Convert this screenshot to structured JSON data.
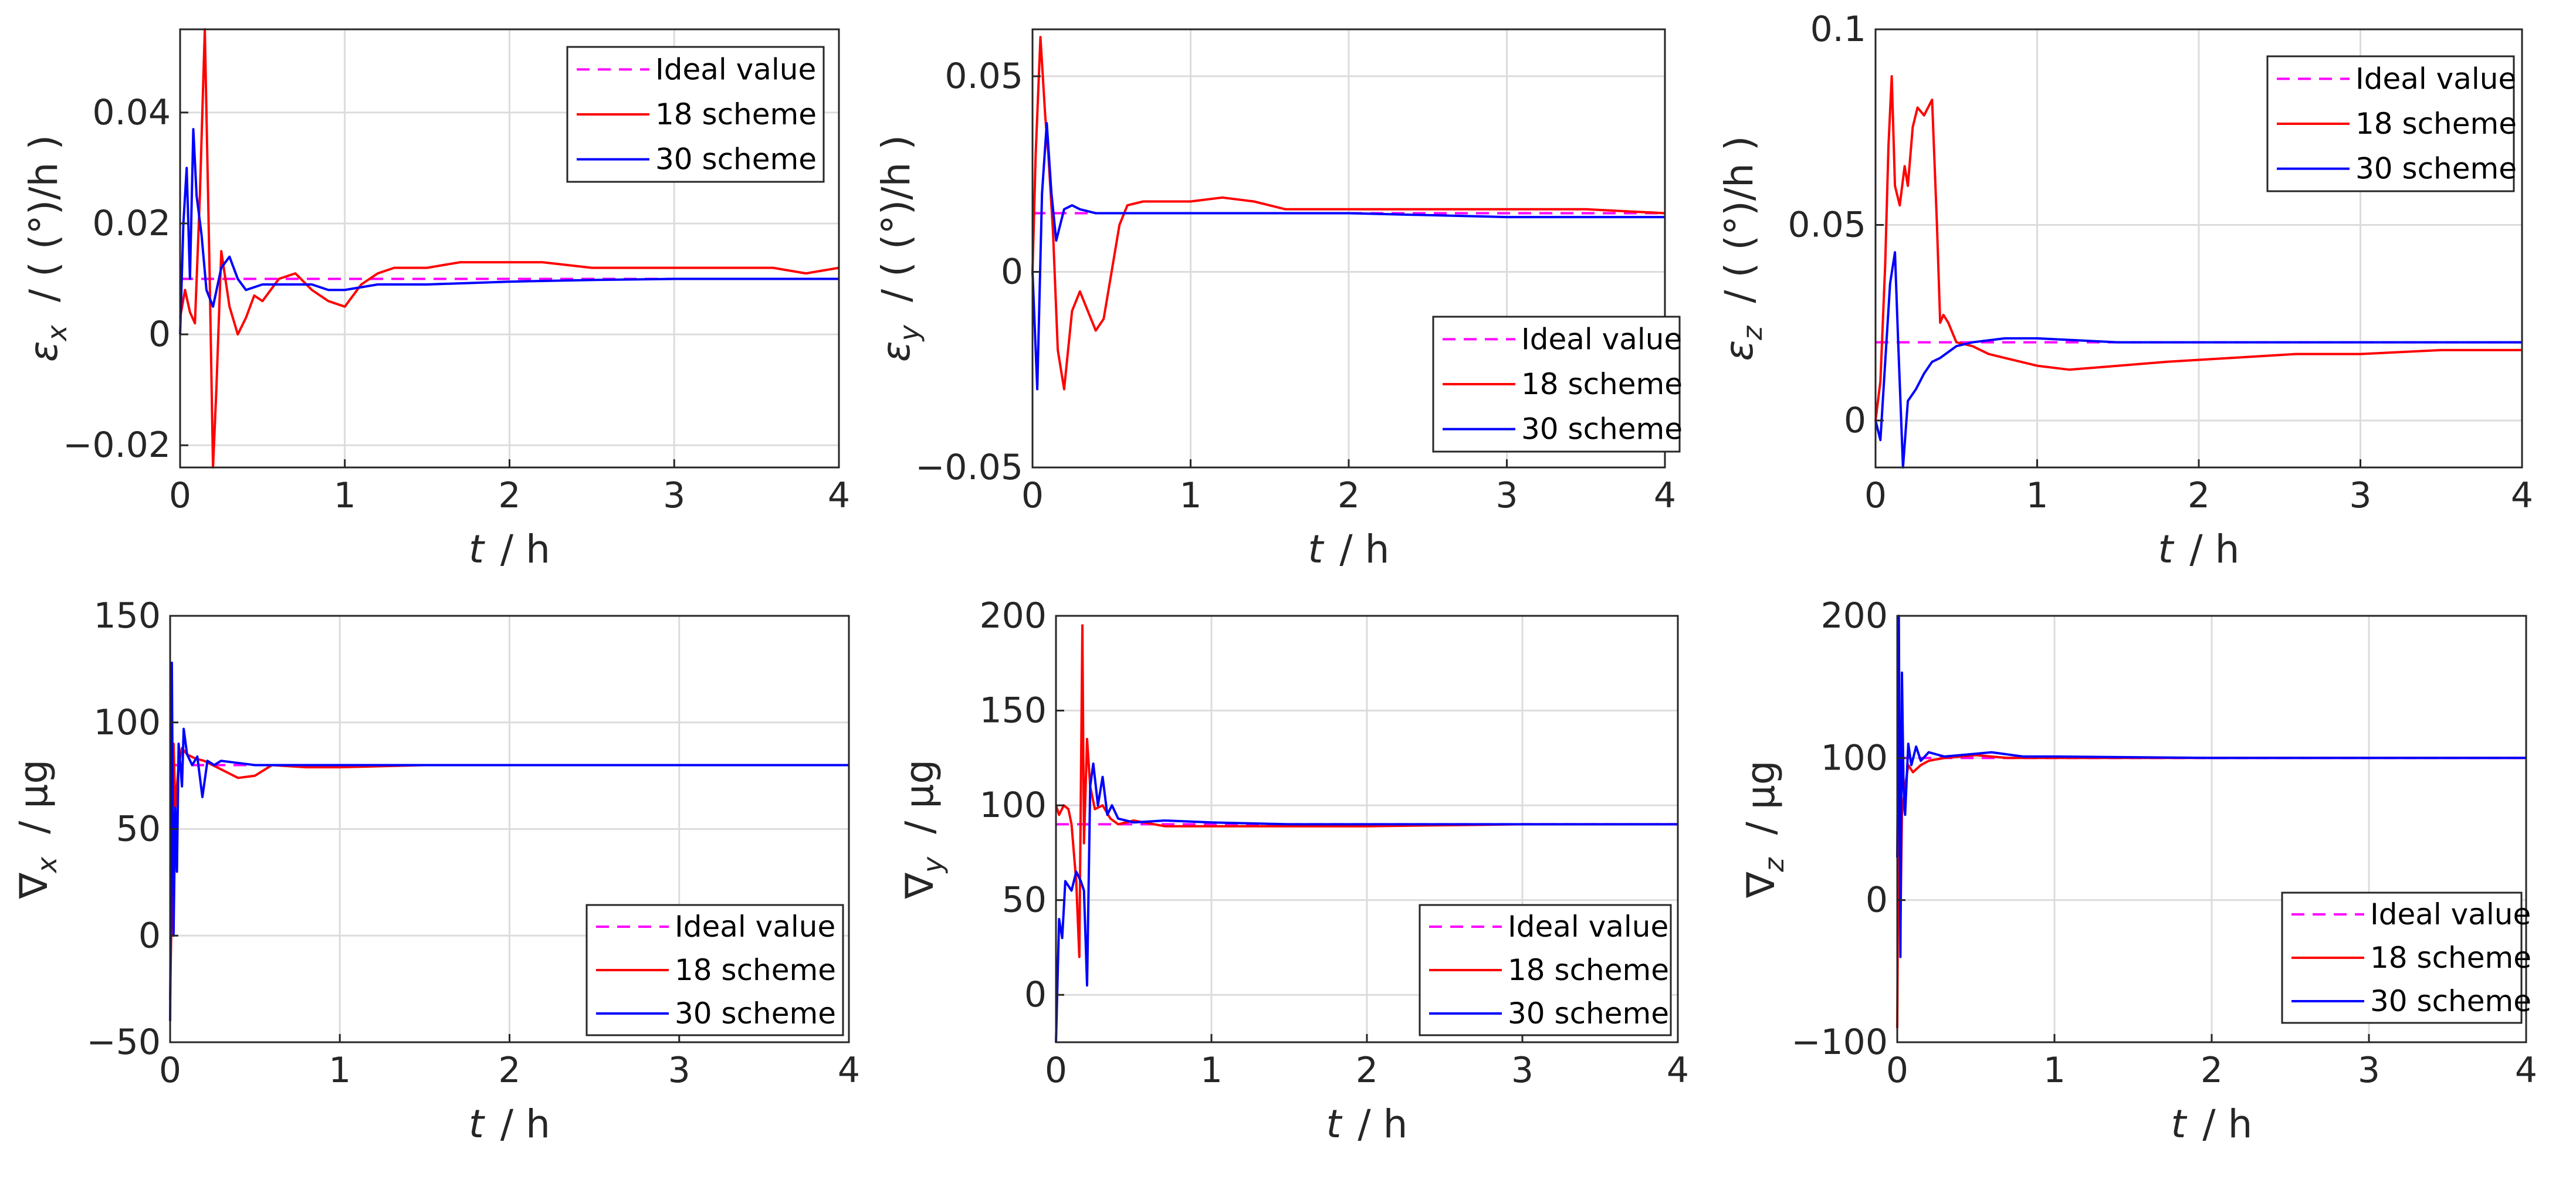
{
  "figure": {
    "legend_labels": [
      "Ideal value",
      "18 scheme",
      "30 scheme"
    ],
    "colors": {
      "ideal": "#ff00ff",
      "scheme18": "#ff0000",
      "scheme30": "#0000ff",
      "axes": "#262626",
      "grid": "#dcdcdc"
    }
  },
  "chart_data": [
    {
      "type": "line",
      "ylabel_symbol": "ε",
      "ylabel_sub": "x",
      "ylabel_unit": "/ ( (°)/h )",
      "xlabel_symbol": "t",
      "xlabel_unit": "/ h",
      "xlim": [
        0,
        4
      ],
      "ylim": [
        -0.024,
        0.055
      ],
      "xticks": [
        0,
        1,
        2,
        3,
        4
      ],
      "xtick_labels": [
        "0",
        "1",
        "2",
        "3",
        "4"
      ],
      "yticks": [
        -0.02,
        0,
        0.02,
        0.04
      ],
      "ytick_labels": [
        "−0.02",
        "0",
        "0.02",
        "0.04"
      ],
      "grid": true,
      "legend_position": "top-right",
      "ideal": 0.01,
      "series": [
        {
          "name": "18 scheme",
          "x": [
            0,
            0.03,
            0.06,
            0.09,
            0.12,
            0.15,
            0.18,
            0.2,
            0.22,
            0.25,
            0.3,
            0.35,
            0.4,
            0.45,
            0.5,
            0.6,
            0.7,
            0.8,
            0.9,
            1.0,
            1.1,
            1.2,
            1.3,
            1.5,
            1.7,
            2.0,
            2.2,
            2.5,
            2.8,
            3.0,
            3.3,
            3.6,
            3.8,
            4.0
          ],
          "values": [
            0.003,
            0.008,
            0.004,
            0.002,
            0.025,
            0.055,
            0.01,
            -0.024,
            -0.01,
            0.015,
            0.005,
            0.0,
            0.003,
            0.007,
            0.006,
            0.01,
            0.011,
            0.008,
            0.006,
            0.005,
            0.009,
            0.011,
            0.012,
            0.012,
            0.013,
            0.013,
            0.013,
            0.012,
            0.012,
            0.012,
            0.012,
            0.012,
            0.011,
            0.012
          ]
        },
        {
          "name": "30 scheme",
          "x": [
            0,
            0.02,
            0.04,
            0.06,
            0.08,
            0.1,
            0.13,
            0.16,
            0.2,
            0.25,
            0.3,
            0.35,
            0.4,
            0.5,
            0.6,
            0.7,
            0.8,
            0.9,
            1.0,
            1.2,
            1.5,
            2.0,
            2.5,
            3.0,
            3.5,
            4.0
          ],
          "values": [
            0.0,
            0.02,
            0.03,
            0.01,
            0.037,
            0.025,
            0.018,
            0.008,
            0.005,
            0.012,
            0.014,
            0.01,
            0.008,
            0.009,
            0.009,
            0.009,
            0.009,
            0.008,
            0.008,
            0.009,
            0.009,
            0.0095,
            0.0098,
            0.01,
            0.01,
            0.01
          ]
        }
      ]
    },
    {
      "type": "line",
      "ylabel_symbol": "ε",
      "ylabel_sub": "y",
      "ylabel_unit": "/ ( (°)/h )",
      "xlabel_symbol": "t",
      "xlabel_unit": "/ h",
      "xlim": [
        0,
        4
      ],
      "ylim": [
        -0.05,
        0.062
      ],
      "xticks": [
        0,
        1,
        2,
        3,
        4
      ],
      "xtick_labels": [
        "0",
        "1",
        "2",
        "3",
        "4"
      ],
      "yticks": [
        -0.05,
        0,
        0.05
      ],
      "ytick_labels": [
        "−0.05",
        "0",
        "0.05"
      ],
      "grid": true,
      "legend_position": "bottom-right",
      "ideal": 0.015,
      "series": [
        {
          "name": "18 scheme",
          "x": [
            0,
            0.02,
            0.05,
            0.08,
            0.1,
            0.13,
            0.16,
            0.2,
            0.25,
            0.3,
            0.35,
            0.4,
            0.45,
            0.5,
            0.55,
            0.6,
            0.7,
            0.8,
            1.0,
            1.2,
            1.4,
            1.6,
            1.8,
            2.0,
            2.5,
            3.0,
            3.5,
            4.0
          ],
          "values": [
            0.0,
            0.03,
            0.06,
            0.04,
            0.03,
            0.01,
            -0.02,
            -0.03,
            -0.01,
            -0.005,
            -0.01,
            -0.015,
            -0.012,
            0.0,
            0.012,
            0.017,
            0.018,
            0.018,
            0.018,
            0.019,
            0.018,
            0.016,
            0.016,
            0.016,
            0.016,
            0.016,
            0.016,
            0.015
          ]
        },
        {
          "name": "30 scheme",
          "x": [
            0,
            0.03,
            0.06,
            0.09,
            0.12,
            0.15,
            0.2,
            0.25,
            0.3,
            0.4,
            0.5,
            0.6,
            0.8,
            1.0,
            1.5,
            2.0,
            3.0,
            4.0
          ],
          "values": [
            0.0,
            -0.03,
            0.02,
            0.038,
            0.02,
            0.008,
            0.016,
            0.017,
            0.016,
            0.015,
            0.015,
            0.015,
            0.015,
            0.015,
            0.015,
            0.015,
            0.014,
            0.014
          ]
        }
      ]
    },
    {
      "type": "line",
      "ylabel_symbol": "ε",
      "ylabel_sub": "z",
      "ylabel_unit": "/ ( (°)/h )",
      "xlabel_symbol": "t",
      "xlabel_unit": "/ h",
      "xlim": [
        0,
        4
      ],
      "ylim": [
        -0.012,
        0.1
      ],
      "xticks": [
        0,
        1,
        2,
        3,
        4
      ],
      "xtick_labels": [
        "0",
        "1",
        "2",
        "3",
        "4"
      ],
      "yticks": [
        0,
        0.05,
        0.1
      ],
      "ytick_labels": [
        "0",
        "0.05",
        "0.1"
      ],
      "grid": true,
      "legend_position": "top-right",
      "ideal": 0.02,
      "series": [
        {
          "name": "18 scheme",
          "x": [
            0,
            0.03,
            0.06,
            0.08,
            0.1,
            0.12,
            0.15,
            0.18,
            0.2,
            0.23,
            0.26,
            0.3,
            0.35,
            0.38,
            0.4,
            0.42,
            0.45,
            0.5,
            0.6,
            0.7,
            0.8,
            1.0,
            1.2,
            1.5,
            1.8,
            2.2,
            2.6,
            3.0,
            3.5,
            4.0
          ],
          "values": [
            0.0,
            0.01,
            0.04,
            0.07,
            0.088,
            0.06,
            0.055,
            0.065,
            0.06,
            0.075,
            0.08,
            0.078,
            0.082,
            0.05,
            0.025,
            0.027,
            0.025,
            0.02,
            0.019,
            0.017,
            0.016,
            0.014,
            0.013,
            0.014,
            0.015,
            0.016,
            0.017,
            0.017,
            0.018,
            0.018
          ]
        },
        {
          "name": "30 scheme",
          "x": [
            0,
            0.03,
            0.06,
            0.09,
            0.12,
            0.14,
            0.17,
            0.2,
            0.25,
            0.3,
            0.35,
            0.4,
            0.5,
            0.6,
            0.8,
            1.0,
            1.5,
            2.0,
            3.0,
            4.0
          ],
          "values": [
            0.0,
            -0.005,
            0.015,
            0.035,
            0.043,
            0.02,
            -0.012,
            0.005,
            0.008,
            0.012,
            0.015,
            0.016,
            0.019,
            0.02,
            0.021,
            0.021,
            0.02,
            0.02,
            0.02,
            0.02
          ]
        }
      ]
    },
    {
      "type": "line",
      "ylabel_symbol": "∇",
      "ylabel_sub": "x",
      "ylabel_unit": "/ μg",
      "xlabel_symbol": "t",
      "xlabel_unit": "/ h",
      "xlim": [
        0,
        4
      ],
      "ylim": [
        -50,
        150
      ],
      "xticks": [
        0,
        1,
        2,
        3,
        4
      ],
      "xtick_labels": [
        "0",
        "1",
        "2",
        "3",
        "4"
      ],
      "yticks": [
        -50,
        0,
        50,
        100,
        150
      ],
      "ytick_labels": [
        "−50",
        "0",
        "50",
        "100",
        "150"
      ],
      "grid": true,
      "legend_position": "bottom-right",
      "ideal": 80,
      "series": [
        {
          "name": "18 scheme",
          "x": [
            0,
            0.01,
            0.02,
            0.03,
            0.05,
            0.07,
            0.1,
            0.15,
            0.2,
            0.3,
            0.4,
            0.5,
            0.6,
            0.8,
            1.0,
            1.5,
            2.0,
            3.0,
            4.0
          ],
          "values": [
            -30,
            20,
            90,
            60,
            80,
            88,
            85,
            83,
            82,
            78,
            74,
            75,
            80,
            79,
            79,
            80,
            80,
            80,
            80
          ]
        },
        {
          "name": "30 scheme",
          "x": [
            0,
            0.01,
            0.02,
            0.03,
            0.04,
            0.05,
            0.07,
            0.08,
            0.1,
            0.13,
            0.16,
            0.19,
            0.22,
            0.26,
            0.3,
            0.4,
            0.5,
            0.7,
            1.0,
            2.0,
            3.0,
            4.0
          ],
          "values": [
            -40,
            128,
            0,
            60,
            30,
            90,
            70,
            97,
            85,
            80,
            84,
            65,
            82,
            80,
            82,
            81,
            80,
            80,
            80,
            80,
            80,
            80
          ]
        }
      ]
    },
    {
      "type": "line",
      "ylabel_symbol": "∇",
      "ylabel_sub": "y",
      "ylabel_unit": "/ μg",
      "xlabel_symbol": "t",
      "xlabel_unit": "/ h",
      "xlim": [
        0,
        4
      ],
      "ylim": [
        -25,
        200
      ],
      "xticks": [
        0,
        1,
        2,
        3,
        4
      ],
      "xtick_labels": [
        "0",
        "1",
        "2",
        "3",
        "4"
      ],
      "yticks": [
        0,
        50,
        100,
        150,
        200
      ],
      "ytick_labels": [
        "0",
        "50",
        "100",
        "150",
        "200"
      ],
      "grid": true,
      "legend_position": "bottom-right",
      "ideal": 90,
      "series": [
        {
          "name": "18 scheme",
          "x": [
            0,
            0.02,
            0.05,
            0.08,
            0.1,
            0.13,
            0.15,
            0.17,
            0.18,
            0.2,
            0.22,
            0.25,
            0.3,
            0.35,
            0.4,
            0.5,
            0.7,
            1.0,
            1.5,
            2.0,
            3.0,
            4.0
          ],
          "values": [
            100,
            95,
            100,
            98,
            90,
            60,
            20,
            195,
            80,
            135,
            110,
            98,
            100,
            93,
            90,
            92,
            89,
            89,
            89,
            89,
            90,
            90
          ]
        },
        {
          "name": "30 scheme",
          "x": [
            0,
            0.02,
            0.04,
            0.06,
            0.1,
            0.13,
            0.16,
            0.18,
            0.2,
            0.22,
            0.24,
            0.27,
            0.3,
            0.33,
            0.36,
            0.4,
            0.5,
            0.7,
            1.0,
            1.5,
            2.0,
            3.0,
            4.0
          ],
          "values": [
            -25,
            40,
            30,
            60,
            55,
            65,
            60,
            55,
            5,
            110,
            122,
            100,
            115,
            95,
            100,
            93,
            91,
            92,
            91,
            90,
            90,
            90,
            90
          ]
        }
      ]
    },
    {
      "type": "line",
      "ylabel_symbol": "∇",
      "ylabel_sub": "z",
      "ylabel_unit": "/ μg",
      "xlabel_symbol": "t",
      "xlabel_unit": "/ h",
      "xlim": [
        0,
        4
      ],
      "ylim": [
        -100,
        200
      ],
      "xticks": [
        0,
        1,
        2,
        3,
        4
      ],
      "xtick_labels": [
        "0",
        "1",
        "2",
        "3",
        "4"
      ],
      "yticks": [
        -100,
        0,
        100,
        200
      ],
      "ytick_labels": [
        "−100",
        "0",
        "100",
        "200"
      ],
      "grid": true,
      "legend_position": "bottom-right",
      "ideal": 100,
      "series": [
        {
          "name": "18 scheme",
          "x": [
            0,
            0.01,
            0.02,
            0.03,
            0.05,
            0.07,
            0.1,
            0.15,
            0.2,
            0.3,
            0.5,
            0.7,
            1.0,
            2.0,
            3.0,
            4.0
          ],
          "values": [
            -90,
            100,
            -20,
            60,
            80,
            95,
            90,
            95,
            98,
            100,
            102,
            100,
            100,
            100,
            100,
            100
          ]
        },
        {
          "name": "30 scheme",
          "x": [
            0,
            0.01,
            0.02,
            0.03,
            0.04,
            0.05,
            0.07,
            0.09,
            0.12,
            0.15,
            0.2,
            0.3,
            0.4,
            0.5,
            0.6,
            0.8,
            1.0,
            2.0,
            3.0,
            4.0
          ],
          "values": [
            30,
            200,
            -40,
            160,
            80,
            60,
            110,
            95,
            108,
            98,
            104,
            101,
            102,
            103,
            104,
            101,
            101,
            100,
            100,
            100
          ]
        }
      ]
    }
  ]
}
